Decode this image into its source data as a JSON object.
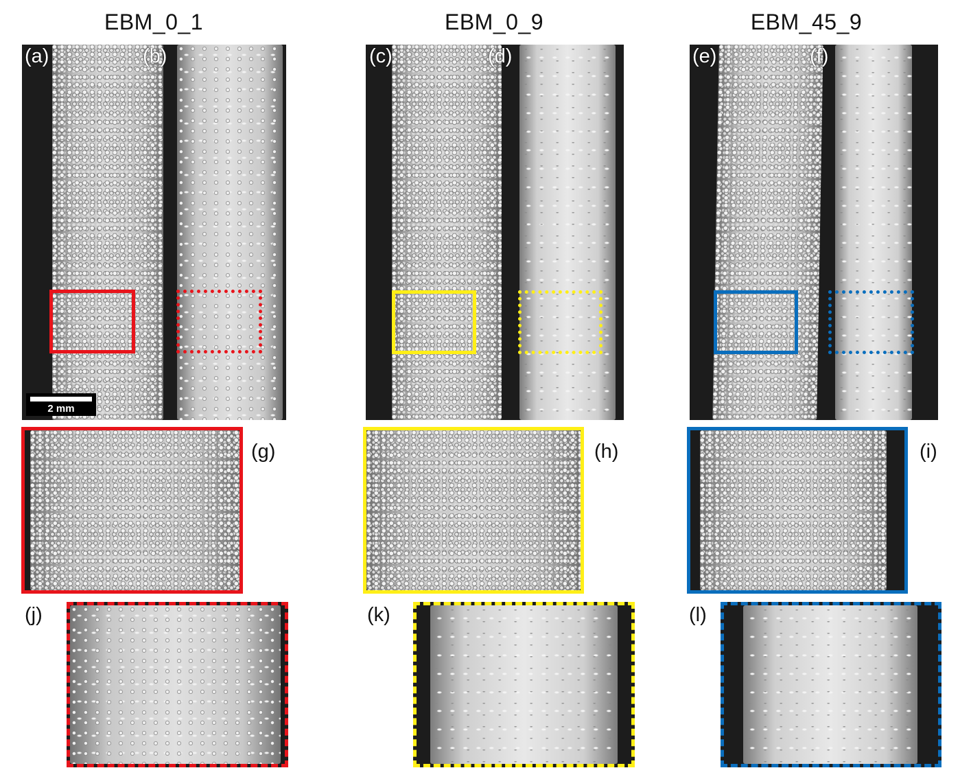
{
  "titles": [
    "EBM_0_1",
    "EBM_0_9",
    "EBM_45_9"
  ],
  "panel_labels": {
    "a": "(a)",
    "b": "(b)",
    "c": "(c)",
    "d": "(d)",
    "e": "(e)",
    "f": "(f)",
    "g": "(g)",
    "h": "(h)",
    "i": "(i)",
    "j": "(j)",
    "k": "(k)",
    "l": "(l)"
  },
  "scale_bar": "2 mm",
  "colors": {
    "ebm_0_1": "#e8141b",
    "ebm_0_9": "#ffef17",
    "ebm_45_9": "#0a6ebd"
  }
}
